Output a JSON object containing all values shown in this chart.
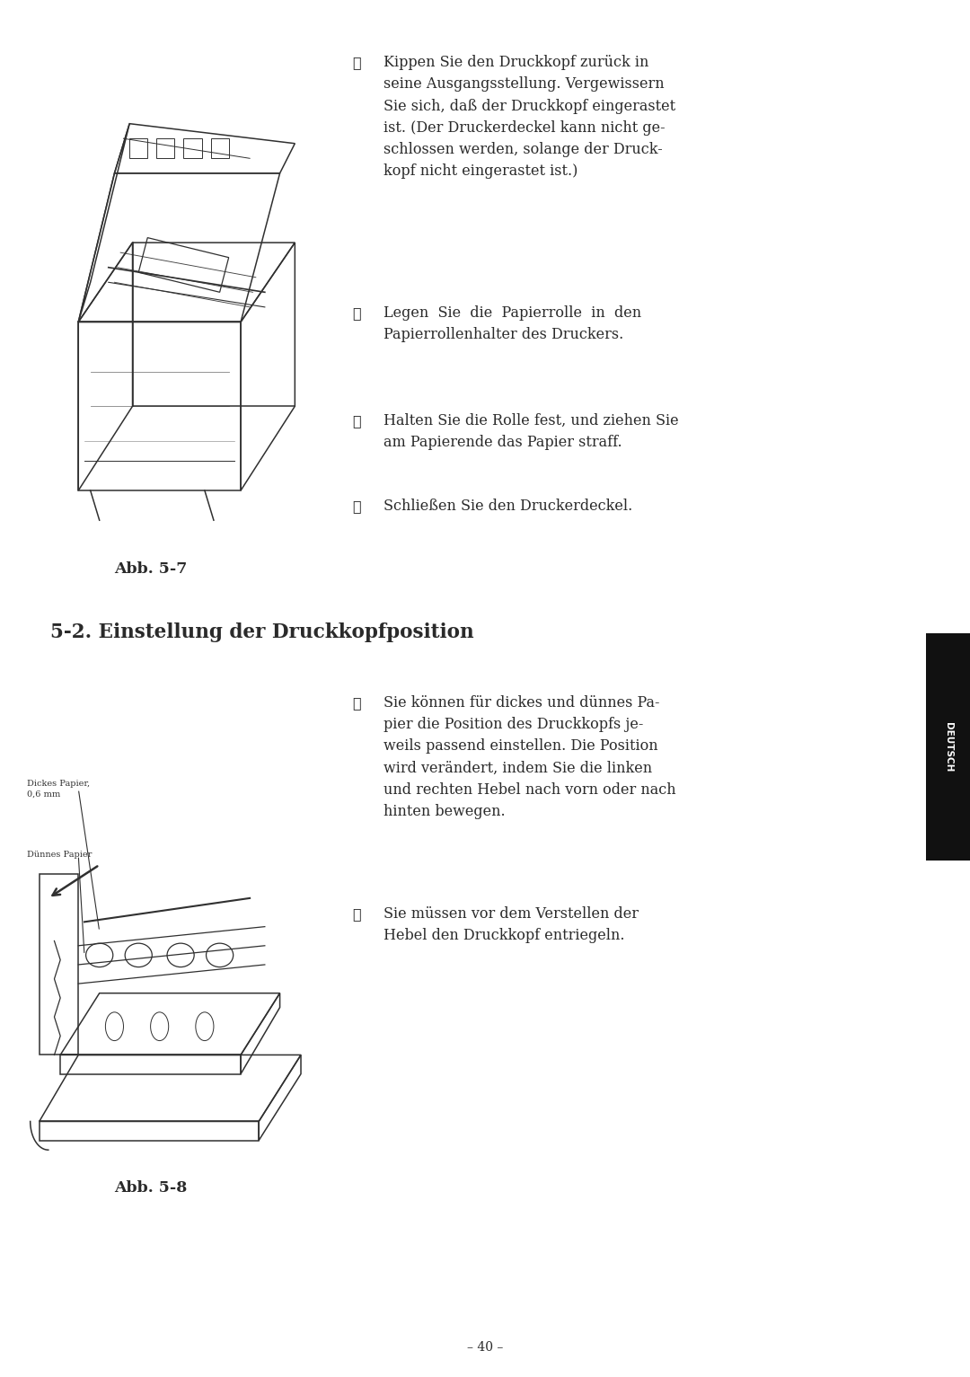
{
  "background_color": "#ffffff",
  "page_width": 10.8,
  "page_height": 15.33,
  "sidebar_color": "#111111",
  "sidebar_text": "DEUTSCH",
  "section_title": "5-2. Einstellung der Druckkopfposition",
  "abb57_label": "Abb. 5-7",
  "abb58_label": "Abb. 5-8",
  "page_number": "– 40 –",
  "item9_num": "⑩",
  "item9_text": "Kippen Sie den Druckkopf zurück in\nseine Ausgangsstellung. Vergewissern\nSie sich, daß der Druckkopf eingerastet\nist. (Der Druckerdeckel kann nicht ge-\nschlossen werden, solange der Druck-\nkopf nicht eingerastet ist.)",
  "item10_num": "⑪",
  "item10_text": "Legen  Sie  die  Papierrolle  in  den\nPapierrollenhalter des Druckers.",
  "item11_num": "⑫",
  "item11_text": "Halten Sie die Rolle fest, und ziehen Sie\nam Papierende das Papier straff.",
  "item12_num": "⑬",
  "item12_text": "Schließen Sie den Druckerdeckel.",
  "item1_num": "①",
  "item1_text": "Sie können für dickes und dünnes Pa-\npier die Position des Druckkopfs je-\nweils passend einstellen. Die Position\nwird verändert, indem Sie die linken\nund rechten Hebel nach vorn oder nach\nhinten bewegen.",
  "item2_num": "②",
  "item2_text": "Sie müssen vor dem Verstellen der\nHebel den Druckkopf entriegeln.",
  "label_dickes": "Dickes Papier,\n0,6 mm",
  "label_dunnes": "Dünnes Papier"
}
